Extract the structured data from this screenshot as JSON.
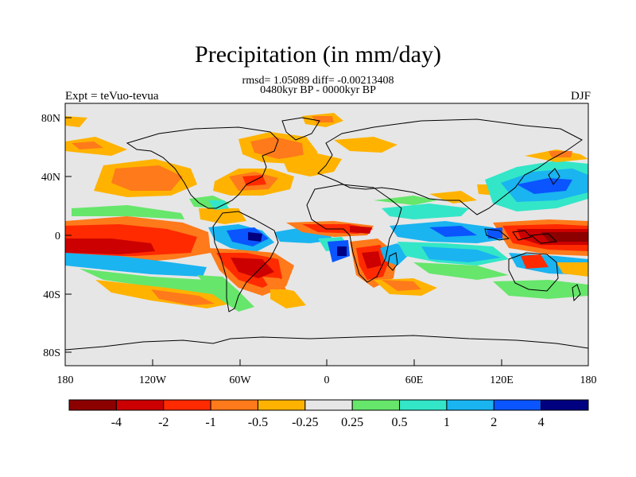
{
  "title": "Precipitation (in mm/day)",
  "subtitle_stats": "rmsd= 1.05089 diff= -0.00213408",
  "subtitle_period": "0480kyr BP - 0000kyr BP",
  "experiment": "Expt = teVuo-tevua",
  "season": "DJF",
  "map": {
    "lat_ticks": [
      "80N",
      "40N",
      "0",
      "40S",
      "80S"
    ],
    "lon_ticks": [
      "180",
      "120W",
      "60W",
      "0",
      "60E",
      "120E",
      "180"
    ],
    "lon_range": [
      -180,
      180
    ],
    "lat_range": [
      -90,
      90
    ],
    "background_color": "#e6e6e6"
  },
  "colorbar": {
    "colors": [
      "#8c0000",
      "#cc0000",
      "#ff2a00",
      "#ff7a1a",
      "#ffb300",
      "#e6e6e6",
      "#66e66b",
      "#33e6c8",
      "#1ab4f0",
      "#0a55ff",
      "#000080"
    ],
    "labels": [
      "-4",
      "-2",
      "-1",
      "-0.5",
      "-0.25",
      "0.25",
      "0.5",
      "1",
      "2",
      "4"
    ]
  }
}
